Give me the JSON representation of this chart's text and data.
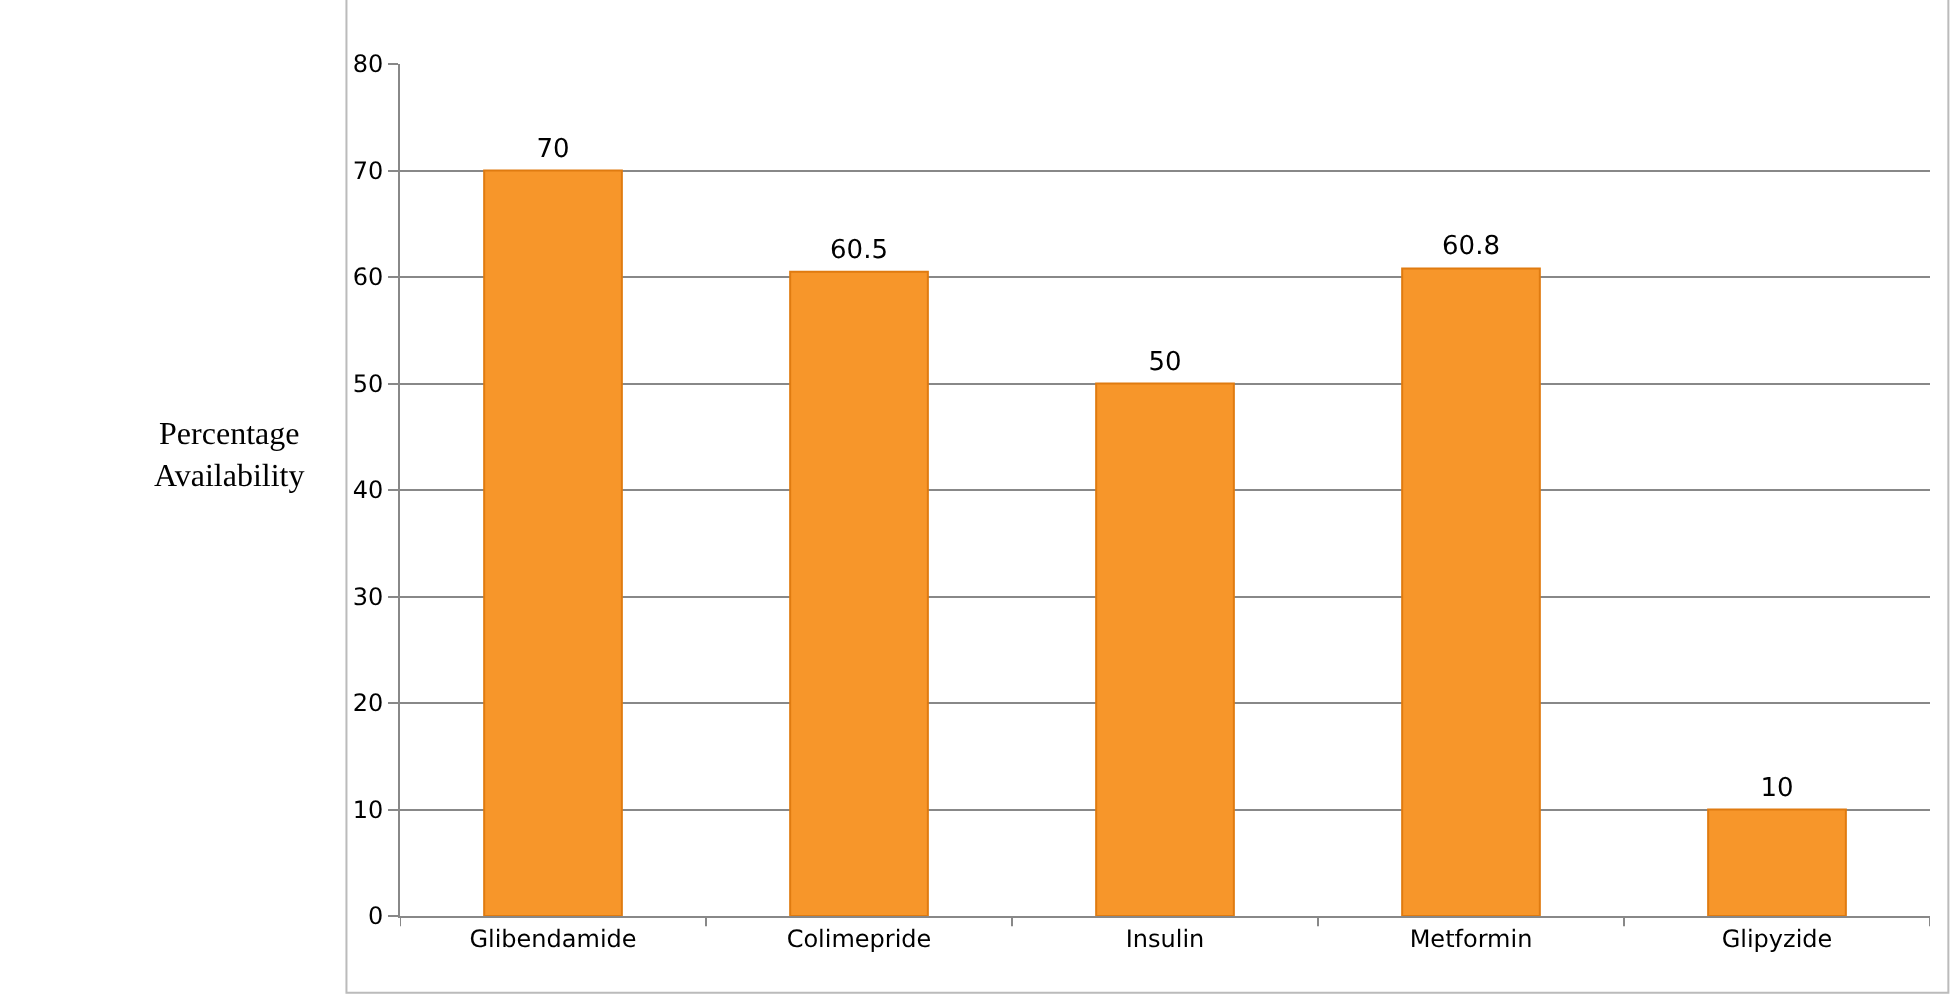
{
  "chart_data": {
    "type": "bar",
    "ylabel": "Percentage Availability",
    "categories": [
      "Glibendamide",
      "Colimepride",
      "Insulin",
      "Metformin",
      "Glipyzide"
    ],
    "values": [
      70,
      60.5,
      50,
      60.8,
      10
    ],
    "color": "#f7962a",
    "ylim": [
      0,
      80
    ],
    "yticks": [
      0,
      10,
      20,
      30,
      40,
      50,
      60,
      70,
      80
    ],
    "grid": "y",
    "data_labels": true
  }
}
